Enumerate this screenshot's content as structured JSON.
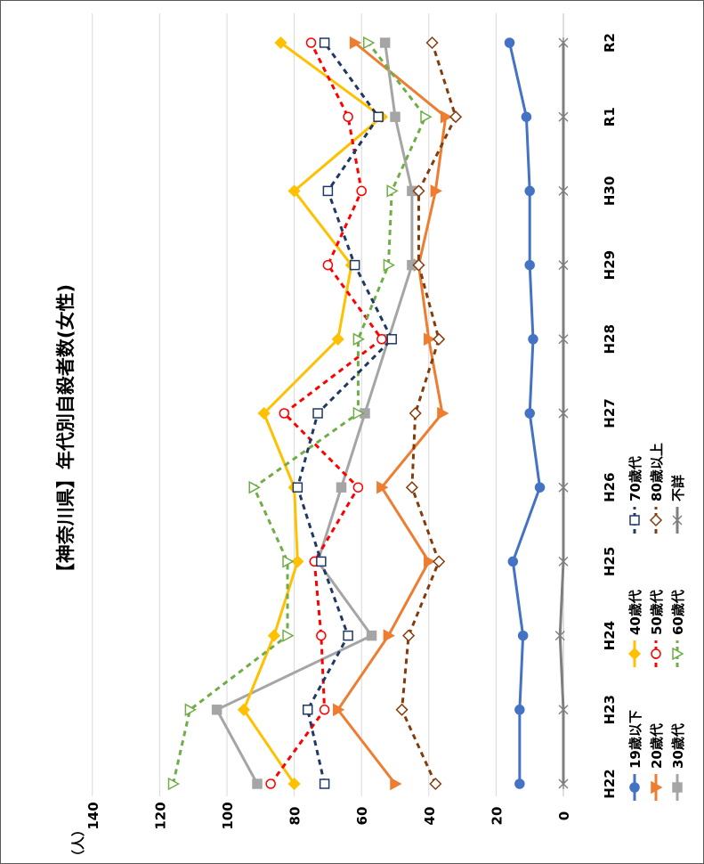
{
  "chart_data": {
    "type": "line",
    "title": "【神奈川県】年代別自殺者数(女性)",
    "ylabel": "（人）",
    "ylim": [
      0,
      140
    ],
    "yticks": [
      0,
      20,
      40,
      60,
      80,
      100,
      120,
      140
    ],
    "x": [
      "H22",
      "H23",
      "H24",
      "H25",
      "H26",
      "H27",
      "H28",
      "H29",
      "H30",
      "R1",
      "R2"
    ],
    "grid": true,
    "legend_position": "bottom",
    "series": [
      {
        "name": "19歳以下",
        "color": "#4472C4",
        "dash": "",
        "marker": "circle",
        "values": [
          13,
          13,
          12,
          15,
          7,
          10,
          9,
          10,
          10,
          11,
          16
        ]
      },
      {
        "name": "20歳代",
        "color": "#ED7D31",
        "dash": "",
        "marker": "triangle",
        "values": [
          50,
          67,
          52,
          40,
          54,
          36,
          40,
          43,
          38,
          35,
          62
        ]
      },
      {
        "name": "30歳代",
        "color": "#A5A5A5",
        "dash": "",
        "marker": "square",
        "values": [
          91,
          103,
          57,
          73,
          66,
          59,
          52,
          45,
          45,
          50,
          53
        ]
      },
      {
        "name": "40歳代",
        "color": "#FFC000",
        "dash": "",
        "marker": "diamond",
        "values": [
          80,
          95,
          86,
          79,
          80,
          89,
          67,
          63,
          80,
          54,
          84
        ]
      },
      {
        "name": "50歳代",
        "color": "#FF0000",
        "dash": "6,5",
        "marker": "circle-open",
        "values": [
          87,
          71,
          72,
          74,
          61,
          83,
          54,
          70,
          60,
          64,
          75
        ]
      },
      {
        "name": "60歳代",
        "color": "#70AD47",
        "dash": "6,5",
        "marker": "triangle-open",
        "values": [
          116,
          111,
          82,
          82,
          92,
          61,
          61,
          52,
          51,
          41,
          58
        ]
      },
      {
        "name": "70歳代",
        "color": "#203864",
        "dash": "6,5",
        "marker": "square-open",
        "values": [
          71,
          76,
          64,
          72,
          79,
          73,
          51,
          62,
          70,
          55,
          71
        ]
      },
      {
        "name": "80歳以上",
        "color": "#843C0C",
        "dash": "6,5",
        "marker": "diamond-open",
        "values": [
          38,
          48,
          46,
          37,
          45,
          44,
          37,
          43,
          43,
          32,
          39
        ]
      },
      {
        "name": "不詳",
        "color": "#7F7F7F",
        "dash": "",
        "marker": "star",
        "values": [
          0,
          0,
          1,
          0,
          0,
          0,
          0,
          0,
          0,
          0,
          0
        ]
      }
    ]
  }
}
